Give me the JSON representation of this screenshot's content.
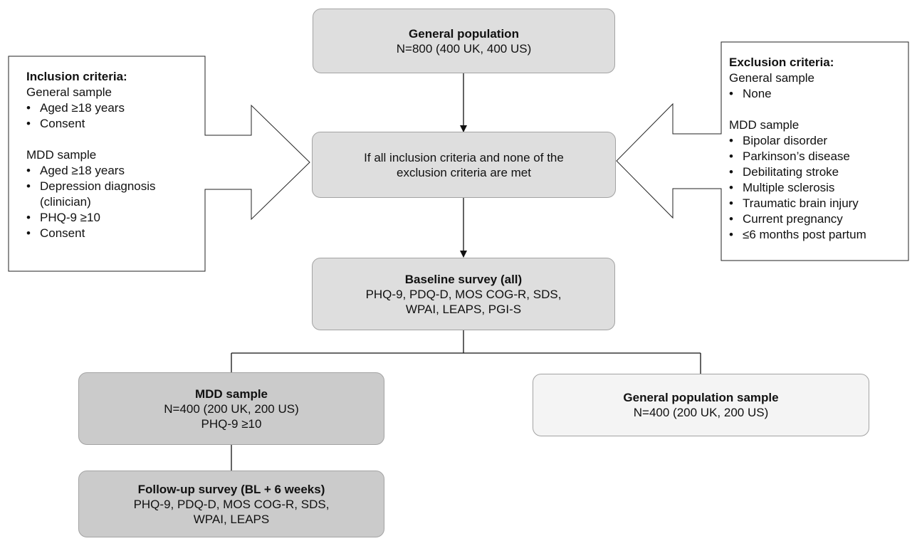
{
  "general_population": {
    "title": "General population",
    "line1": "N=800 (400 UK, 400 US)"
  },
  "screening": {
    "line1": "If all inclusion criteria and none of the",
    "line2": "exclusion criteria are met"
  },
  "baseline": {
    "title": "Baseline survey (all)",
    "line1": "PHQ-9, PDQ-D, MOS COG-R, SDS,",
    "line2": "WPAI, LEAPS, PGI-S"
  },
  "mdd_sample": {
    "title": "MDD sample",
    "line1": "N=400 (200 UK, 200 US)",
    "line2": "PHQ-9 ≥10"
  },
  "general_sample": {
    "title": "General population sample",
    "line1": "N=400 (200 UK, 200 US)"
  },
  "followup": {
    "title": "Follow-up survey (BL + 6 weeks)",
    "line1": "PHQ-9, PDQ-D, MOS COG-R, SDS,",
    "line2": "WPAI, LEAPS"
  },
  "inclusion": {
    "title": "Inclusion criteria:",
    "general_label": "General sample",
    "general_items": [
      "Aged ≥18 years",
      "Consent"
    ],
    "mdd_label": "MDD sample",
    "mdd_items": [
      "Aged ≥18 years",
      "Depression diagnosis (clinician)",
      "PHQ-9 ≥10",
      "Consent"
    ]
  },
  "exclusion": {
    "title": "Exclusion criteria:",
    "general_label": "General sample",
    "general_items": [
      "None"
    ],
    "mdd_label": "MDD sample",
    "mdd_items": [
      "Bipolar disorder",
      "Parkinson’s disease",
      "Debilitating stroke",
      "Multiple sclerosis",
      "Traumatic brain injury",
      "Current pregnancy",
      "≤6 months post partum"
    ]
  }
}
